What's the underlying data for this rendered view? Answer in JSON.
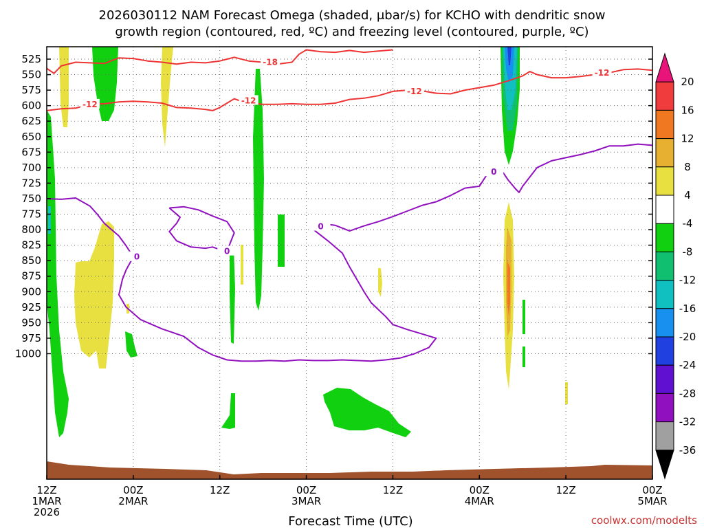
{
  "title_line1": "2026030112 NAM Forecast Omega (shaded, μbar/s) for KCHO with dendritic snow",
  "title_line2": "growth region (contoured, red, ºC) and freezing level (contoured, purple, ºC)",
  "xlabel": "Forecast Time (UTC)",
  "credit": "coolwx.com/modelts",
  "chart_data": {
    "type": "heatmap",
    "y_ticks": [
      525,
      550,
      575,
      600,
      625,
      650,
      675,
      700,
      725,
      750,
      775,
      800,
      825,
      850,
      875,
      900,
      925,
      950,
      975,
      1000
    ],
    "x_ticks": [
      {
        "hour": 0,
        "line1": "12Z",
        "line2": "1MAR",
        "line3": "2026"
      },
      {
        "hour": 12,
        "line1": "00Z",
        "line2": "2MAR",
        "line3": ""
      },
      {
        "hour": 24,
        "line1": "12Z",
        "line2": "",
        "line3": ""
      },
      {
        "hour": 36,
        "line1": "00Z",
        "line2": "3MAR",
        "line3": ""
      },
      {
        "hour": 48,
        "line1": "12Z",
        "line2": "",
        "line3": ""
      },
      {
        "hour": 60,
        "line1": "00Z",
        "line2": "4MAR",
        "line3": ""
      },
      {
        "hour": 72,
        "line1": "12Z",
        "line2": "",
        "line3": ""
      },
      {
        "hour": 84,
        "line1": "00Z",
        "line2": "5MAR",
        "line3": ""
      }
    ],
    "colorbar": {
      "labels": [
        "20",
        "16",
        "12",
        "8",
        "4",
        "-4",
        "-8",
        "-12",
        "-16",
        "-20",
        "-24",
        "-28",
        "-32",
        "-36"
      ],
      "colors": [
        "#e8147a",
        "#f03c3c",
        "#f07820",
        "#e8b030",
        "#e8e040",
        "#ffffff",
        "#10d010",
        "#10c070",
        "#10c0c0",
        "#1890f0",
        "#2040e0",
        "#6010d0",
        "#9010c0",
        "#a0a0a0",
        "#000000"
      ]
    },
    "contour_labels": {
      "dgz_warm": "-12",
      "dgz_cold": "-18",
      "freezing": "0"
    },
    "dgz_minus12": [
      [
        0,
        608
      ],
      [
        2,
        605
      ],
      [
        4,
        604
      ],
      [
        6,
        598
      ],
      [
        8,
        597
      ],
      [
        10,
        594
      ],
      [
        12,
        593
      ],
      [
        14,
        594
      ],
      [
        16,
        596
      ],
      [
        18,
        603
      ],
      [
        20,
        604
      ],
      [
        22,
        606
      ],
      [
        23,
        608
      ],
      [
        24,
        603
      ],
      [
        25,
        596
      ],
      [
        26,
        589
      ],
      [
        27,
        593
      ],
      [
        28,
        595
      ],
      [
        30,
        598
      ],
      [
        32,
        598
      ],
      [
        34,
        597
      ],
      [
        36,
        598
      ],
      [
        38,
        598
      ],
      [
        40,
        596
      ],
      [
        42,
        590
      ],
      [
        44,
        588
      ],
      [
        46,
        584
      ],
      [
        48,
        577
      ],
      [
        50,
        575
      ],
      [
        52,
        576
      ],
      [
        54,
        580
      ],
      [
        56,
        581
      ],
      [
        58,
        575
      ],
      [
        60,
        571
      ],
      [
        62,
        567
      ],
      [
        64,
        560
      ],
      [
        66,
        552
      ],
      [
        67,
        545
      ],
      [
        68,
        550
      ],
      [
        70,
        555
      ],
      [
        72,
        555
      ],
      [
        74,
        553
      ],
      [
        76,
        550
      ],
      [
        78,
        547
      ],
      [
        80,
        542
      ],
      [
        82,
        541
      ],
      [
        84,
        543
      ]
    ],
    "dgz_minus18": [
      [
        0,
        540
      ],
      [
        1,
        548
      ],
      [
        2,
        536
      ],
      [
        4,
        530
      ],
      [
        6,
        531
      ],
      [
        8,
        532
      ],
      [
        10,
        523
      ],
      [
        12,
        524
      ],
      [
        14,
        528
      ],
      [
        16,
        530
      ],
      [
        18,
        533
      ],
      [
        20,
        530
      ],
      [
        22,
        531
      ],
      [
        24,
        528
      ],
      [
        25,
        525
      ],
      [
        26,
        522
      ],
      [
        28,
        528
      ],
      [
        30,
        530
      ],
      [
        32,
        533
      ],
      [
        34,
        530
      ],
      [
        35,
        517
      ],
      [
        36,
        510
      ],
      [
        38,
        513
      ],
      [
        40,
        514
      ],
      [
        42,
        511
      ],
      [
        44,
        514
      ],
      [
        46,
        512
      ],
      [
        48,
        510
      ]
    ],
    "freezing_level": [
      [
        0,
        750
      ],
      [
        2,
        751
      ],
      [
        4,
        749
      ],
      [
        6,
        762
      ],
      [
        7,
        775
      ],
      [
        8,
        790
      ],
      [
        9,
        800
      ],
      [
        10,
        810
      ],
      [
        11,
        826
      ],
      [
        12,
        844
      ],
      [
        11,
        865
      ],
      [
        10.5,
        880
      ],
      [
        10,
        905
      ],
      [
        11,
        925
      ],
      [
        13,
        945
      ],
      [
        16,
        960
      ],
      [
        19,
        972
      ],
      [
        21,
        990
      ],
      [
        23,
        1002
      ],
      [
        25,
        1010
      ],
      [
        27,
        1012
      ],
      [
        29,
        1012
      ],
      [
        31,
        1011
      ],
      [
        33,
        1012
      ],
      [
        35,
        1010
      ],
      [
        37,
        1011
      ],
      [
        39,
        1011
      ],
      [
        41,
        1010
      ],
      [
        43,
        1011
      ],
      [
        45,
        1012
      ],
      [
        47,
        1010
      ],
      [
        49,
        1007
      ],
      [
        51,
        1000
      ],
      [
        53,
        990
      ],
      [
        54,
        975
      ],
      [
        52,
        968
      ],
      [
        50,
        961
      ],
      [
        48,
        953
      ],
      [
        47,
        940
      ],
      [
        45,
        918
      ],
      [
        44,
        900
      ],
      [
        43,
        880
      ],
      [
        42,
        860
      ],
      [
        41,
        838
      ],
      [
        39,
        818
      ],
      [
        37,
        800
      ],
      [
        38,
        790
      ],
      [
        40,
        793
      ],
      [
        42,
        802
      ],
      [
        44,
        794
      ],
      [
        46,
        787
      ],
      [
        48,
        779
      ],
      [
        50,
        770
      ],
      [
        52,
        761
      ],
      [
        54,
        755
      ],
      [
        56,
        745
      ],
      [
        58,
        733
      ],
      [
        60,
        730
      ],
      [
        61,
        712
      ],
      [
        62,
        708
      ],
      [
        63,
        703
      ],
      [
        64,
        720
      ],
      [
        65,
        734
      ],
      [
        65.5,
        740
      ],
      [
        66,
        730
      ],
      [
        67,
        715
      ],
      [
        68,
        700
      ],
      [
        70,
        689
      ],
      [
        72,
        684
      ],
      [
        74,
        679
      ],
      [
        76,
        673
      ],
      [
        78,
        665
      ],
      [
        80,
        665
      ],
      [
        82,
        662
      ],
      [
        84,
        664
      ]
    ],
    "freezing_loop": [
      [
        17,
        765
      ],
      [
        19,
        763
      ],
      [
        21,
        768
      ],
      [
        23,
        778
      ],
      [
        25,
        787
      ],
      [
        26,
        805
      ],
      [
        25.5,
        820
      ],
      [
        25,
        835
      ],
      [
        24,
        832
      ],
      [
        23,
        828
      ],
      [
        22,
        830
      ],
      [
        20,
        828
      ],
      [
        18,
        818
      ],
      [
        17,
        803
      ],
      [
        18,
        790
      ],
      [
        18.5,
        780
      ],
      [
        17,
        765
      ]
    ],
    "freezing_tail": [
      [
        12,
        844
      ],
      [
        12.5,
        850
      ]
    ]
  }
}
